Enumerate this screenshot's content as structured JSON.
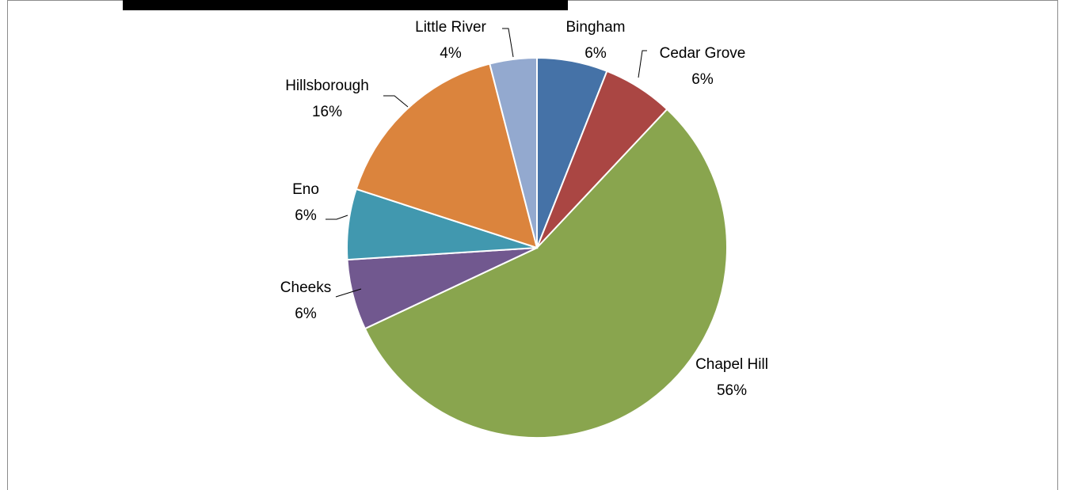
{
  "chart_data": {
    "type": "pie",
    "title": "",
    "legend": "none",
    "slices": [
      {
        "name": "Bingham",
        "value": 6,
        "label": "6%",
        "color": "#4572A7"
      },
      {
        "name": "Cedar Grove",
        "value": 6,
        "label": "6%",
        "color": "#AA4643"
      },
      {
        "name": "Chapel Hill",
        "value": 56,
        "label": "56%",
        "color": "#89A54E"
      },
      {
        "name": "Cheeks",
        "value": 6,
        "label": "6%",
        "color": "#71588F"
      },
      {
        "name": "Eno",
        "value": 6,
        "label": "6%",
        "color": "#4198AF"
      },
      {
        "name": "Hillsborough",
        "value": 16,
        "label": "16%",
        "color": "#DB843D"
      },
      {
        "name": "Little River",
        "value": 4,
        "label": "4%",
        "color": "#93A9CF"
      }
    ]
  }
}
